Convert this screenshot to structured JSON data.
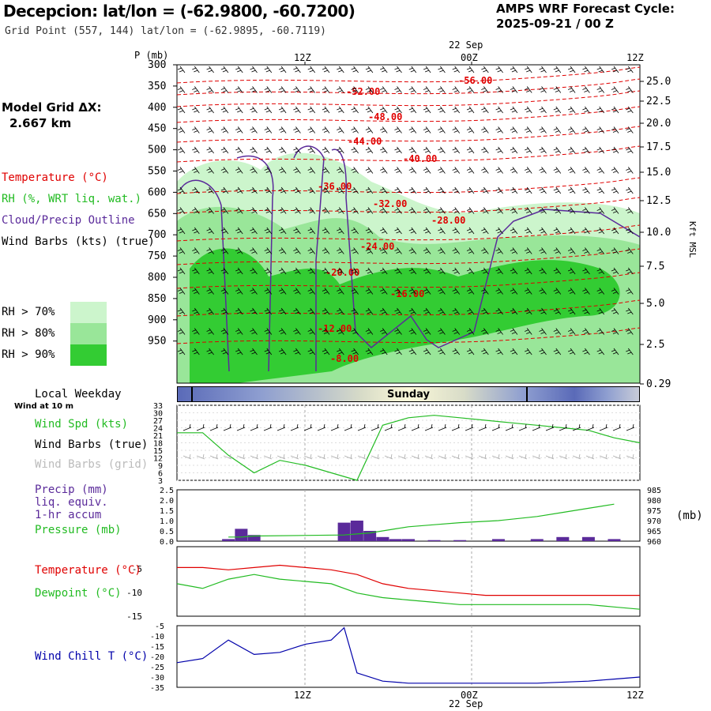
{
  "header": {
    "title": "Decepcion:  lat/lon = (-62.9800, -60.7200)",
    "subtitle": "Grid Point (557, 144) lat/lon = (-62.9895, -60.7119)",
    "cycle_line1": "AMPS WRF Forecast Cycle:",
    "cycle_line2": "2025-09-21 / 00  Z"
  },
  "model_grid": {
    "line1": "Model Grid ΔX:",
    "line2": "2.667 km"
  },
  "legend": {
    "temperature": "Temperature (°C)",
    "rh": "RH (%, WRT liq. wat.)",
    "cloud": "Cloud/Precip Outline",
    "wind": "Wind Barbs (kts) (true)",
    "rh70": "RH > 70%",
    "rh80": "RH > 80%",
    "rh90": "RH > 90%"
  },
  "colors": {
    "temp": "#e00000",
    "rh70": "#ccf5cc",
    "rh80": "#99e699",
    "rh90": "#33cc33",
    "cloud": "#5a2a9a",
    "precip": "#5a2a9a",
    "pressure": "#22bb22",
    "windspd": "#22bb22",
    "dewpoint": "#22bb22",
    "windchill": "#0000aa",
    "grid": "#aaaaaa"
  },
  "time_axis": {
    "top_labels": [
      "12Z",
      "00Z",
      "12Z"
    ],
    "date_label": "22 Sep",
    "bottom_labels": [
      "12Z",
      "00Z",
      "12Z"
    ],
    "bottom_date": "22 Sep"
  },
  "cross_section": {
    "p_label": "P (mb)",
    "p_ticks": [
      "300",
      "350",
      "400",
      "450",
      "500",
      "550",
      "600",
      "650",
      "700",
      "750",
      "800",
      "850",
      "900",
      "950"
    ],
    "kft_ticks": [
      "25.0",
      "22.5",
      "20.0",
      "17.5",
      "15.0",
      "12.5",
      "10.0",
      "7.5",
      "5.0",
      "2.5",
      "0.29"
    ],
    "kft_label": "Kft MSL",
    "temp_labels": [
      "-56.00",
      "-52.00",
      "-48.00",
      "-44.00",
      "-40.00",
      "-36.00",
      "-32.00",
      "-28.00",
      "-24.00",
      "-20.00",
      "-16.00",
      "-12.00",
      "-8.00"
    ]
  },
  "day_strip": {
    "local_label": "Local Weekday",
    "day": "Sunday"
  },
  "panel_labels": {
    "wind_at": "Wind at 10 m",
    "wind_spd": "Wind Spd (kts)",
    "wind_true": "Wind Barbs (true)",
    "wind_grid": "Wind Barbs (grid)",
    "precip1": "Precip (mm)",
    "precip2": "liq. equiv.",
    "precip3": "1-hr accum",
    "pressure": "Pressure (mb)",
    "mb_unit": "(mb)",
    "temperature": "Temperature (°C)",
    "dewpoint": "Dewpoint (°C)",
    "windchill": "Wind Chill T (°C)"
  },
  "chart_data": [
    {
      "type": "line",
      "title": "Wind Spd (kts)",
      "x": [
        0,
        2,
        4,
        6,
        8,
        10,
        12,
        14,
        16,
        18,
        20,
        22,
        24,
        26,
        28,
        30,
        32,
        34,
        36
      ],
      "series": [
        {
          "name": "Wind Spd (kts)",
          "values": [
            22,
            22,
            13,
            6,
            11,
            9,
            6,
            3,
            25,
            28,
            29,
            28,
            27,
            26,
            25,
            24,
            23,
            20,
            18
          ]
        }
      ],
      "yticks": [
        "33",
        "30",
        "27",
        "24",
        "21",
        "18",
        "15",
        "12",
        "9",
        "6",
        "3"
      ],
      "ylim": [
        3,
        33
      ]
    },
    {
      "type": "bar",
      "title": "Precip (mm)",
      "x": [
        4,
        5,
        6,
        13,
        14,
        15,
        16,
        17,
        18,
        20,
        22,
        25,
        28,
        30,
        32,
        34
      ],
      "series": [
        {
          "name": "Precip (mm)",
          "values": [
            0.1,
            0.6,
            0.3,
            0.9,
            1.0,
            0.5,
            0.2,
            0.1,
            0.1,
            0.05,
            0.05,
            0.1,
            0.1,
            0.2,
            0.2,
            0.1
          ]
        },
        {
          "name": "Pressure (mb)",
          "values": [
            962,
            962,
            962.5,
            963,
            963.5,
            964,
            965,
            966,
            967,
            968,
            969,
            970,
            972,
            974,
            976,
            978
          ]
        }
      ],
      "yticks_left": [
        "2.5",
        "2.0",
        "1.5",
        "1.0",
        "0.5",
        "0.0"
      ],
      "yticks_right": [
        "985",
        "980",
        "975",
        "970",
        "965",
        "960"
      ],
      "ylim": [
        0,
        2.5
      ],
      "y2lim": [
        960,
        985
      ]
    },
    {
      "type": "line",
      "title": "Temperature / Dewpoint",
      "x": [
        0,
        2,
        4,
        6,
        8,
        10,
        12,
        14,
        16,
        18,
        20,
        22,
        24,
        26,
        28,
        30,
        32,
        34,
        36
      ],
      "series": [
        {
          "name": "Temperature (°C)",
          "values": [
            -4.5,
            -4.5,
            -5,
            -4.5,
            -4,
            -4.5,
            -5,
            -6,
            -8,
            -9,
            -9.5,
            -10,
            -10.5,
            -10.5,
            -10.5,
            -10.5,
            -10.5,
            -10.5,
            -10.5
          ]
        },
        {
          "name": "Dewpoint (°C)",
          "values": [
            -8,
            -9,
            -7,
            -6,
            -7,
            -7.5,
            -8,
            -10,
            -11,
            -11.5,
            -12,
            -12.5,
            -12.5,
            -12.5,
            -12.5,
            -12.5,
            -12.5,
            -13,
            -13.5
          ]
        }
      ],
      "yticks": [
        "-5",
        "-10",
        "-15"
      ],
      "ylim": [
        -15,
        0
      ]
    },
    {
      "type": "line",
      "title": "Wind Chill T (°C)",
      "x": [
        0,
        2,
        4,
        6,
        8,
        10,
        12,
        13,
        14,
        16,
        18,
        20,
        24,
        28,
        32,
        34,
        36
      ],
      "series": [
        {
          "name": "Wind Chill T (°C)",
          "values": [
            -23,
            -21,
            -12,
            -19,
            -18,
            -14,
            -12,
            -6,
            -28,
            -32,
            -33,
            -33,
            -33,
            -33,
            -32,
            -31,
            -30
          ]
        }
      ],
      "yticks": [
        "-5",
        "-10",
        "-15",
        "-20",
        "-25",
        "-30",
        "-35"
      ],
      "ylim": [
        -35,
        -5
      ]
    }
  ]
}
